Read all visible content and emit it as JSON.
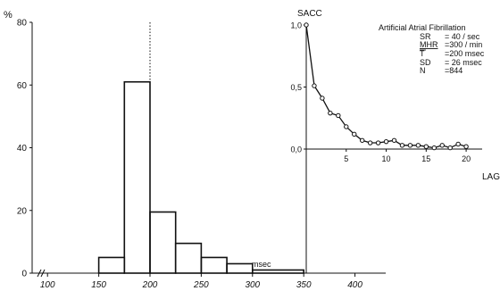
{
  "chart_data": [
    {
      "type": "bar",
      "ylabel": "%",
      "xlabel": "msec",
      "bins": [
        {
          "from": 150,
          "to": 175,
          "value": 5
        },
        {
          "from": 175,
          "to": 200,
          "value": 61
        },
        {
          "from": 200,
          "to": 225,
          "value": 19.5
        },
        {
          "from": 225,
          "to": 250,
          "value": 9.5
        },
        {
          "from": 250,
          "to": 275,
          "value": 5
        },
        {
          "from": 275,
          "to": 300,
          "value": 3
        },
        {
          "from": 300,
          "to": 350,
          "value": 1
        }
      ],
      "mean_line_x": 200,
      "x_ticks": [
        "100",
        "150",
        "200",
        "250",
        "300",
        "350",
        "400"
      ],
      "y_ticks": [
        "0",
        "20",
        "40",
        "60",
        "80"
      ],
      "xlim": [
        85,
        430
      ],
      "ylim": [
        0,
        80
      ],
      "axis_break": true
    },
    {
      "type": "line",
      "ylabel": "SACC",
      "xlabel": "LAG",
      "x": [
        0,
        1,
        2,
        3,
        4,
        5,
        6,
        7,
        8,
        9,
        10,
        11,
        12,
        13,
        14,
        15,
        16,
        17,
        18,
        19,
        20
      ],
      "y": [
        1.0,
        0.51,
        0.41,
        0.29,
        0.27,
        0.18,
        0.12,
        0.07,
        0.05,
        0.05,
        0.06,
        0.07,
        0.03,
        0.03,
        0.03,
        0.02,
        0.01,
        0.03,
        0.01,
        0.04,
        0.02
      ],
      "x_ticks": [
        "5",
        "10",
        "15",
        "20"
      ],
      "y_ticks": [
        "1,0",
        "0,5",
        "0,0"
      ],
      "xlim": [
        0,
        22
      ],
      "ylim": [
        -1.0,
        1.0
      ],
      "annotation": {
        "title": "Artificial Atrial Fibrillation",
        "rows": [
          {
            "label": "SR",
            "value": "= 40 / sec"
          },
          {
            "label": "MHR",
            "value": "=300 / min"
          },
          {
            "label": "T",
            "value": "=200 msec"
          },
          {
            "label": "SD",
            "value": "= 26 msec"
          },
          {
            "label": "N",
            "value": "=844"
          }
        ]
      }
    }
  ]
}
